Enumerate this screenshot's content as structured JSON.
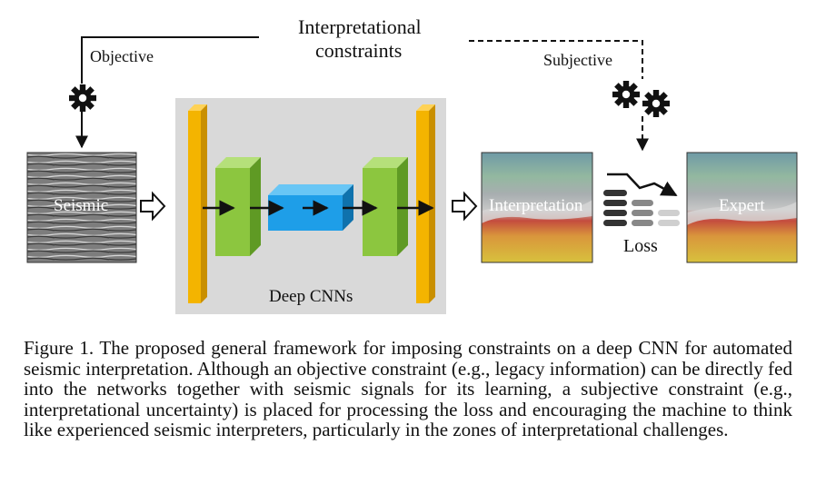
{
  "diagram": {
    "constraints_title_line1": "Interpretational",
    "constraints_title_line2": "constraints",
    "objective_label": "Objective",
    "subjective_label": "Subjective",
    "seismic_label": "Seismic",
    "network_label": "Deep CNNs",
    "interpretation_label": "Interpretation",
    "loss_label": "Loss",
    "expert_label": "Expert",
    "icons": [
      "gear-icon",
      "double-gear-icon",
      "loss-bars-icon"
    ],
    "colors": {
      "panel": "#d9d9d9",
      "input_output_layer": "#f4b400",
      "encoder_block": "#8cc63f",
      "bottleneck_block": "#1e9ee8"
    }
  },
  "caption": {
    "text": "Figure 1.  The proposed general framework for imposing constraints on a deep CNN for automated seismic interpretation. Although an objective constraint (e.g., legacy information) can be directly fed into the networks together with seismic signals for its learning, a subjective constraint (e.g., interpretational uncertainty) is placed for processing the loss and encouraging the machine to think like experienced seismic interpreters, particularly in the zones of interpretational challenges."
  }
}
